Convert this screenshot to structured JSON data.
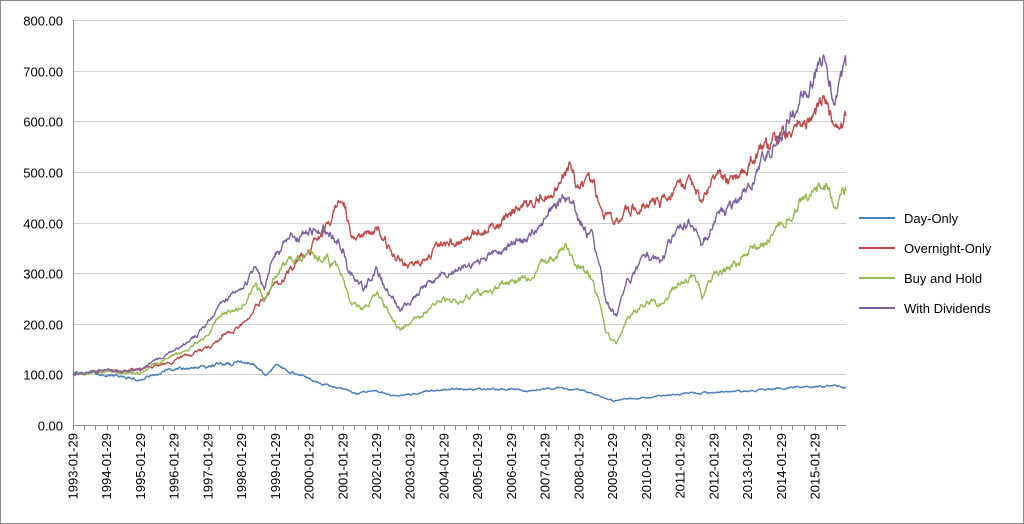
{
  "chart_data": {
    "type": "line",
    "title": "",
    "xlabel": "",
    "ylabel": "",
    "ylim": [
      0,
      800
    ],
    "yticks": [
      "0.00",
      "100.00",
      "200.00",
      "300.00",
      "400.00",
      "500.00",
      "600.00",
      "700.00",
      "800.00"
    ],
    "x": [
      "1993-01-29",
      "1994-01-29",
      "1995-01-29",
      "1996-01-29",
      "1997-01-29",
      "1998-01-29",
      "1999-01-29",
      "2000-01-29",
      "2001-01-29",
      "2002-01-29",
      "2003-01-29",
      "2004-01-29",
      "2005-01-29",
      "2006-01-29",
      "2007-01-29",
      "2008-01-29",
      "2009-01-29",
      "2010-01-29",
      "2011-01-29",
      "2012-01-29",
      "2013-01-29",
      "2014-01-29",
      "2015-01-29"
    ],
    "grid": true,
    "legend_position": "right",
    "series": [
      {
        "name": "Day-Only",
        "color": "#4a7ebb",
        "points": [
          [
            "1993-01-29",
            100
          ],
          [
            "1993-07-01",
            101
          ],
          [
            "1994-01-29",
            98
          ],
          [
            "1994-07-01",
            95
          ],
          [
            "1995-01-29",
            90
          ],
          [
            "1995-07-01",
            100
          ],
          [
            "1996-01-29",
            112
          ],
          [
            "1996-07-01",
            113
          ],
          [
            "1997-01-29",
            117
          ],
          [
            "1997-07-01",
            122
          ],
          [
            "1998-01-29",
            124
          ],
          [
            "1998-07-01",
            118
          ],
          [
            "1998-10-15",
            100
          ],
          [
            "1999-01-29",
            118
          ],
          [
            "1999-07-01",
            108
          ],
          [
            "2000-01-29",
            92
          ],
          [
            "2000-07-01",
            82
          ],
          [
            "2001-01-29",
            72
          ],
          [
            "2001-07-01",
            62
          ],
          [
            "2002-01-29",
            68
          ],
          [
            "2002-07-01",
            58
          ],
          [
            "2003-01-29",
            60
          ],
          [
            "2003-07-01",
            65
          ],
          [
            "2004-01-29",
            70
          ],
          [
            "2004-07-01",
            70
          ],
          [
            "2005-01-29",
            71
          ],
          [
            "2005-07-01",
            70
          ],
          [
            "2006-01-29",
            70
          ],
          [
            "2006-07-01",
            68
          ],
          [
            "2007-01-29",
            72
          ],
          [
            "2007-07-01",
            74
          ],
          [
            "2008-01-29",
            68
          ],
          [
            "2008-07-01",
            62
          ],
          [
            "2009-01-29",
            48
          ],
          [
            "2009-07-01",
            52
          ],
          [
            "2010-01-29",
            55
          ],
          [
            "2010-07-01",
            58
          ],
          [
            "2011-01-29",
            60
          ],
          [
            "2011-07-01",
            64
          ],
          [
            "2012-01-29",
            63
          ],
          [
            "2012-07-01",
            66
          ],
          [
            "2013-01-29",
            67
          ],
          [
            "2013-07-01",
            70
          ],
          [
            "2014-01-29",
            72
          ],
          [
            "2014-07-01",
            75
          ],
          [
            "2015-01-29",
            76
          ],
          [
            "2015-07-01",
            78
          ],
          [
            "2015-12-31",
            74
          ]
        ]
      },
      {
        "name": "Overnight-Only",
        "color": "#be4b48",
        "points": [
          [
            "1993-01-29",
            100
          ],
          [
            "1993-07-01",
            104
          ],
          [
            "1994-01-29",
            108
          ],
          [
            "1994-07-01",
            107
          ],
          [
            "1995-01-29",
            110
          ],
          [
            "1995-07-01",
            115
          ],
          [
            "1996-01-29",
            125
          ],
          [
            "1996-07-01",
            138
          ],
          [
            "1997-01-29",
            150
          ],
          [
            "1997-07-01",
            175
          ],
          [
            "1998-01-29",
            195
          ],
          [
            "1998-07-01",
            230
          ],
          [
            "1999-01-29",
            280
          ],
          [
            "1999-07-01",
            310
          ],
          [
            "2000-01-29",
            350
          ],
          [
            "2000-07-01",
            380
          ],
          [
            "2001-01-29",
            450
          ],
          [
            "2001-03-01",
            430
          ],
          [
            "2001-05-01",
            370
          ],
          [
            "2001-09-15",
            375
          ],
          [
            "2002-01-29",
            395
          ],
          [
            "2002-07-01",
            340
          ],
          [
            "2002-10-15",
            320
          ],
          [
            "2003-01-29",
            310
          ],
          [
            "2003-07-01",
            330
          ],
          [
            "2004-01-29",
            355
          ],
          [
            "2004-07-01",
            360
          ],
          [
            "2005-01-29",
            375
          ],
          [
            "2005-07-01",
            395
          ],
          [
            "2006-01-29",
            415
          ],
          [
            "2006-07-01",
            430
          ],
          [
            "2007-01-29",
            450
          ],
          [
            "2007-07-01",
            470
          ],
          [
            "2007-10-15",
            500
          ],
          [
            "2008-01-29",
            470
          ],
          [
            "2008-07-01",
            480
          ],
          [
            "2008-10-15",
            420
          ],
          [
            "2009-01-29",
            390
          ],
          [
            "2009-07-01",
            420
          ],
          [
            "2010-01-29",
            445
          ],
          [
            "2010-07-01",
            440
          ],
          [
            "2011-01-29",
            480
          ],
          [
            "2011-07-01",
            470
          ],
          [
            "2011-10-01",
            440
          ],
          [
            "2012-01-29",
            485
          ],
          [
            "2012-07-01",
            480
          ],
          [
            "2013-01-29",
            520
          ],
          [
            "2013-07-01",
            545
          ],
          [
            "2014-01-29",
            570
          ],
          [
            "2014-07-01",
            595
          ],
          [
            "2015-01-29",
            615
          ],
          [
            "2015-05-01",
            640
          ],
          [
            "2015-08-25",
            590
          ],
          [
            "2015-12-31",
            610
          ]
        ]
      },
      {
        "name": "Buy and Hold",
        "color": "#98b954",
        "points": [
          [
            "1993-01-29",
            100
          ],
          [
            "1993-07-01",
            103
          ],
          [
            "1994-01-29",
            106
          ],
          [
            "1994-07-01",
            102
          ],
          [
            "1995-01-29",
            104
          ],
          [
            "1995-07-01",
            120
          ],
          [
            "1996-01-29",
            140
          ],
          [
            "1996-07-01",
            150
          ],
          [
            "1997-01-29",
            180
          ],
          [
            "1997-07-01",
            220
          ],
          [
            "1998-01-29",
            240
          ],
          [
            "1998-07-01",
            280
          ],
          [
            "1998-10-01",
            245
          ],
          [
            "1999-01-29",
            300
          ],
          [
            "1999-07-01",
            320
          ],
          [
            "2000-01-29",
            335
          ],
          [
            "2000-07-01",
            330
          ],
          [
            "2001-01-29",
            300
          ],
          [
            "2001-04-01",
            255
          ],
          [
            "2001-09-20",
            225
          ],
          [
            "2002-01-29",
            265
          ],
          [
            "2002-07-01",
            215
          ],
          [
            "2002-10-09",
            190
          ],
          [
            "2003-01-29",
            205
          ],
          [
            "2003-07-01",
            225
          ],
          [
            "2004-01-29",
            250
          ],
          [
            "2004-07-01",
            250
          ],
          [
            "2005-01-29",
            260
          ],
          [
            "2005-07-01",
            270
          ],
          [
            "2006-01-29",
            285
          ],
          [
            "2006-07-01",
            290
          ],
          [
            "2007-01-29",
            320
          ],
          [
            "2007-07-01",
            340
          ],
          [
            "2007-10-01",
            350
          ],
          [
            "2008-01-29",
            310
          ],
          [
            "2008-07-01",
            290
          ],
          [
            "2008-11-20",
            185
          ],
          [
            "2009-03-09",
            160
          ],
          [
            "2009-07-01",
            210
          ],
          [
            "2010-01-29",
            245
          ],
          [
            "2010-07-01",
            240
          ],
          [
            "2011-01-29",
            285
          ],
          [
            "2011-07-01",
            290
          ],
          [
            "2011-10-01",
            255
          ],
          [
            "2012-01-29",
            295
          ],
          [
            "2012-07-01",
            305
          ],
          [
            "2013-01-29",
            330
          ],
          [
            "2013-07-01",
            360
          ],
          [
            "2014-01-29",
            400
          ],
          [
            "2014-07-01",
            430
          ],
          [
            "2015-01-29",
            460
          ],
          [
            "2015-05-01",
            480
          ],
          [
            "2015-08-25",
            430
          ],
          [
            "2015-12-31",
            462
          ]
        ]
      },
      {
        "name": "With Dividends",
        "color": "#7d60a0",
        "points": [
          [
            "1993-01-29",
            100
          ],
          [
            "1993-07-01",
            104
          ],
          [
            "1994-01-29",
            108
          ],
          [
            "1994-07-01",
            105
          ],
          [
            "1995-01-29",
            108
          ],
          [
            "1995-07-01",
            126
          ],
          [
            "1996-01-29",
            150
          ],
          [
            "1996-07-01",
            165
          ],
          [
            "1997-01-29",
            200
          ],
          [
            "1997-07-01",
            245
          ],
          [
            "1998-01-29",
            265
          ],
          [
            "1998-07-01",
            310
          ],
          [
            "1998-10-01",
            275
          ],
          [
            "1999-01-29",
            340
          ],
          [
            "1999-07-01",
            365
          ],
          [
            "2000-01-29",
            385
          ],
          [
            "2000-07-01",
            390
          ],
          [
            "2001-01-29",
            355
          ],
          [
            "2001-04-01",
            300
          ],
          [
            "2001-09-20",
            270
          ],
          [
            "2002-01-29",
            310
          ],
          [
            "2002-07-01",
            255
          ],
          [
            "2002-10-09",
            225
          ],
          [
            "2003-01-29",
            245
          ],
          [
            "2003-07-01",
            270
          ],
          [
            "2004-01-29",
            305
          ],
          [
            "2004-07-01",
            305
          ],
          [
            "2005-01-29",
            320
          ],
          [
            "2005-07-01",
            335
          ],
          [
            "2006-01-29",
            355
          ],
          [
            "2006-07-01",
            365
          ],
          [
            "2007-01-29",
            405
          ],
          [
            "2007-07-01",
            435
          ],
          [
            "2007-10-01",
            450
          ],
          [
            "2008-01-29",
            400
          ],
          [
            "2008-07-01",
            375
          ],
          [
            "2008-11-20",
            245
          ],
          [
            "2009-03-09",
            215
          ],
          [
            "2009-07-01",
            280
          ],
          [
            "2010-01-29",
            330
          ],
          [
            "2010-07-01",
            325
          ],
          [
            "2011-01-29",
            390
          ],
          [
            "2011-07-01",
            400
          ],
          [
            "2011-10-01",
            355
          ],
          [
            "2012-01-29",
            410
          ],
          [
            "2012-07-01",
            430
          ],
          [
            "2013-01-29",
            470
          ],
          [
            "2013-07-01",
            520
          ],
          [
            "2014-01-29",
            580
          ],
          [
            "2014-07-01",
            630
          ],
          [
            "2015-01-29",
            690
          ],
          [
            "2015-05-01",
            730
          ],
          [
            "2015-08-25",
            650
          ],
          [
            "2015-12-31",
            710
          ]
        ]
      }
    ]
  }
}
